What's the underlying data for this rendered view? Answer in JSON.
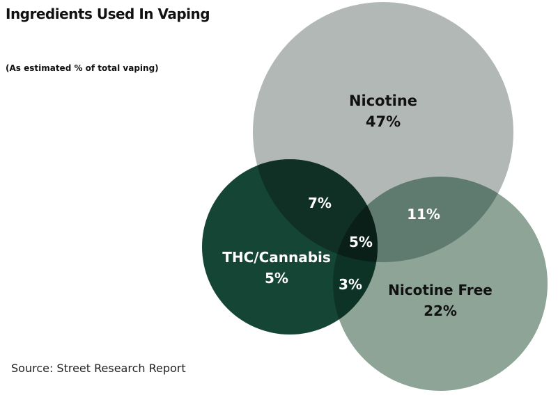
{
  "title": "Ingredients Used In Vaping",
  "subtitle": "(As estimated % of total vaping)",
  "source": "Source: Street Research Report",
  "colors": {
    "nicotine": "#b2b8b6",
    "nicotine_free": "#8da496",
    "thc": "#144535",
    "thc_nicotine": "#102f25",
    "nicotine_nicotine_free": "#5f7b6f",
    "thc_nicotine_free": "#0d3326",
    "all_three": "#0a1f18"
  },
  "chart_data": {
    "type": "venn",
    "title": "Ingredients Used In Vaping",
    "subtitle": "(As estimated % of total vaping)",
    "sets": [
      {
        "id": "nicotine",
        "name": "Nicotine",
        "value": 47,
        "value_label": "47%"
      },
      {
        "id": "nicotine_free",
        "name": "Nicotine Free",
        "value": 22,
        "value_label": "22%"
      },
      {
        "id": "thc",
        "name": "THC/Cannabis",
        "value": 5,
        "value_label": "5%"
      }
    ],
    "intersections": [
      {
        "sets": [
          "nicotine",
          "thc"
        ],
        "value": 7,
        "value_label": "7%"
      },
      {
        "sets": [
          "nicotine",
          "nicotine_free"
        ],
        "value": 11,
        "value_label": "11%"
      },
      {
        "sets": [
          "thc",
          "nicotine_free"
        ],
        "value": 3,
        "value_label": "3%"
      },
      {
        "sets": [
          "nicotine",
          "nicotine_free",
          "thc"
        ],
        "value": 5,
        "value_label": "5%"
      }
    ]
  }
}
